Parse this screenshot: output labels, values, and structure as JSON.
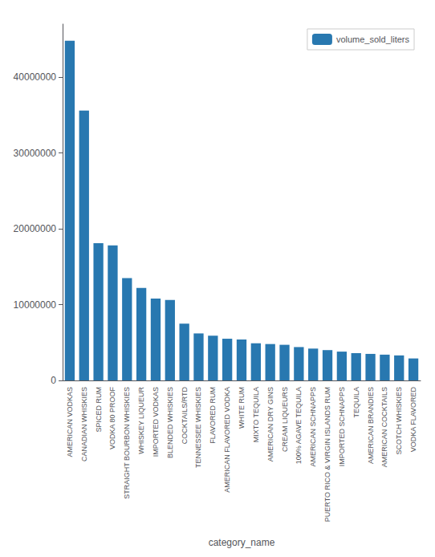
{
  "chart_data": {
    "type": "bar",
    "categories": [
      "AMERICAN VODKAS",
      "CANADIAN WHISKIES",
      "SPICED RUM",
      "VODKA 80 PROOF",
      "STRAIGHT BOURBON WHISKIES",
      "WHISKEY LIQUEUR",
      "IMPORTED VODKAS",
      "BLENDED WHISKIES",
      "COCKTAILS/RTD",
      "TENNESSEE WHISKIES",
      "FLAVORED RUM",
      "AMERICAN FLAVORED VODKA",
      "WHITE RUM",
      "MIXTO TEQUILA",
      "AMERICAN DRY GINS",
      "CREAM LIQUEURS",
      "100% AGAVE TEQUILA",
      "AMERICAN SCHNAPPS",
      "PUERTO RICO & VIRGIN ISLANDS RUM",
      "IMPORTED SCHNAPPS",
      "TEQUILA",
      "AMERICAN BRANDIES",
      "AMERICAN COCKTAILS",
      "SCOTCH WHISKIES",
      "VODKA FLAVORED"
    ],
    "series": [
      {
        "name": "volume_sold_liters",
        "color": "#2878b0",
        "values": [
          44800000,
          35600000,
          18100000,
          17800000,
          13500000,
          12200000,
          10800000,
          10600000,
          7500000,
          6200000,
          5900000,
          5500000,
          5400000,
          4900000,
          4800000,
          4700000,
          4400000,
          4200000,
          4000000,
          3800000,
          3600000,
          3500000,
          3400000,
          3300000,
          2900000
        ]
      }
    ],
    "xlabel": "category_name",
    "ylim": [
      0,
      47000000
    ],
    "yticks": [
      0,
      10000000,
      20000000,
      30000000,
      40000000
    ],
    "grid": false,
    "legend": "upper right"
  }
}
